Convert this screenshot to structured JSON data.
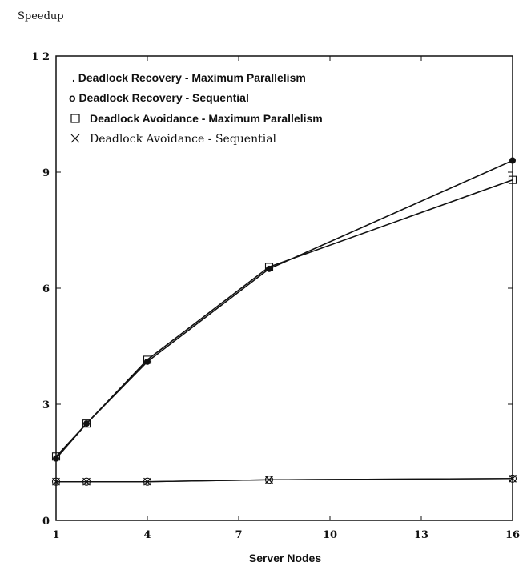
{
  "chart_data": {
    "type": "line",
    "ylabel": "Speedup",
    "xlabel": "Server Nodes",
    "xlim": [
      1,
      16
    ],
    "ylim": [
      0,
      12
    ],
    "x_ticks": [
      1,
      4,
      7,
      10,
      13,
      16
    ],
    "x_tick_labels": [
      "1",
      "4",
      "7",
      "10",
      "13",
      "16"
    ],
    "y_ticks": [
      0,
      3,
      6,
      9,
      12
    ],
    "y_tick_labels": [
      "0",
      "3",
      "6",
      "9",
      "1 2"
    ],
    "grid": false,
    "legend_position": "top-left",
    "series": [
      {
        "name": ". Deadlock Recovery - Maximum Parallelism",
        "marker": "filled-circle",
        "x": [
          1,
          2,
          4,
          8,
          16
        ],
        "values": [
          1.6,
          2.5,
          4.1,
          6.5,
          9.3
        ]
      },
      {
        "name": "o Deadlock Recovery - Sequential",
        "marker": "open-circle",
        "x": [
          1,
          2,
          4,
          8,
          16
        ],
        "values": [
          1.0,
          1.0,
          1.0,
          1.05,
          1.08
        ]
      },
      {
        "name": "Deadlock Avoidance - Maximum Parallelism",
        "marker": "square",
        "x": [
          1,
          2,
          4,
          8,
          16
        ],
        "values": [
          1.65,
          2.5,
          4.15,
          6.55,
          8.8
        ]
      },
      {
        "name": "Deadlock Avoidance - Sequential",
        "marker": "x",
        "x": [
          1,
          2,
          4,
          8,
          16
        ],
        "values": [
          1.0,
          1.0,
          1.0,
          1.05,
          1.08
        ]
      }
    ]
  }
}
